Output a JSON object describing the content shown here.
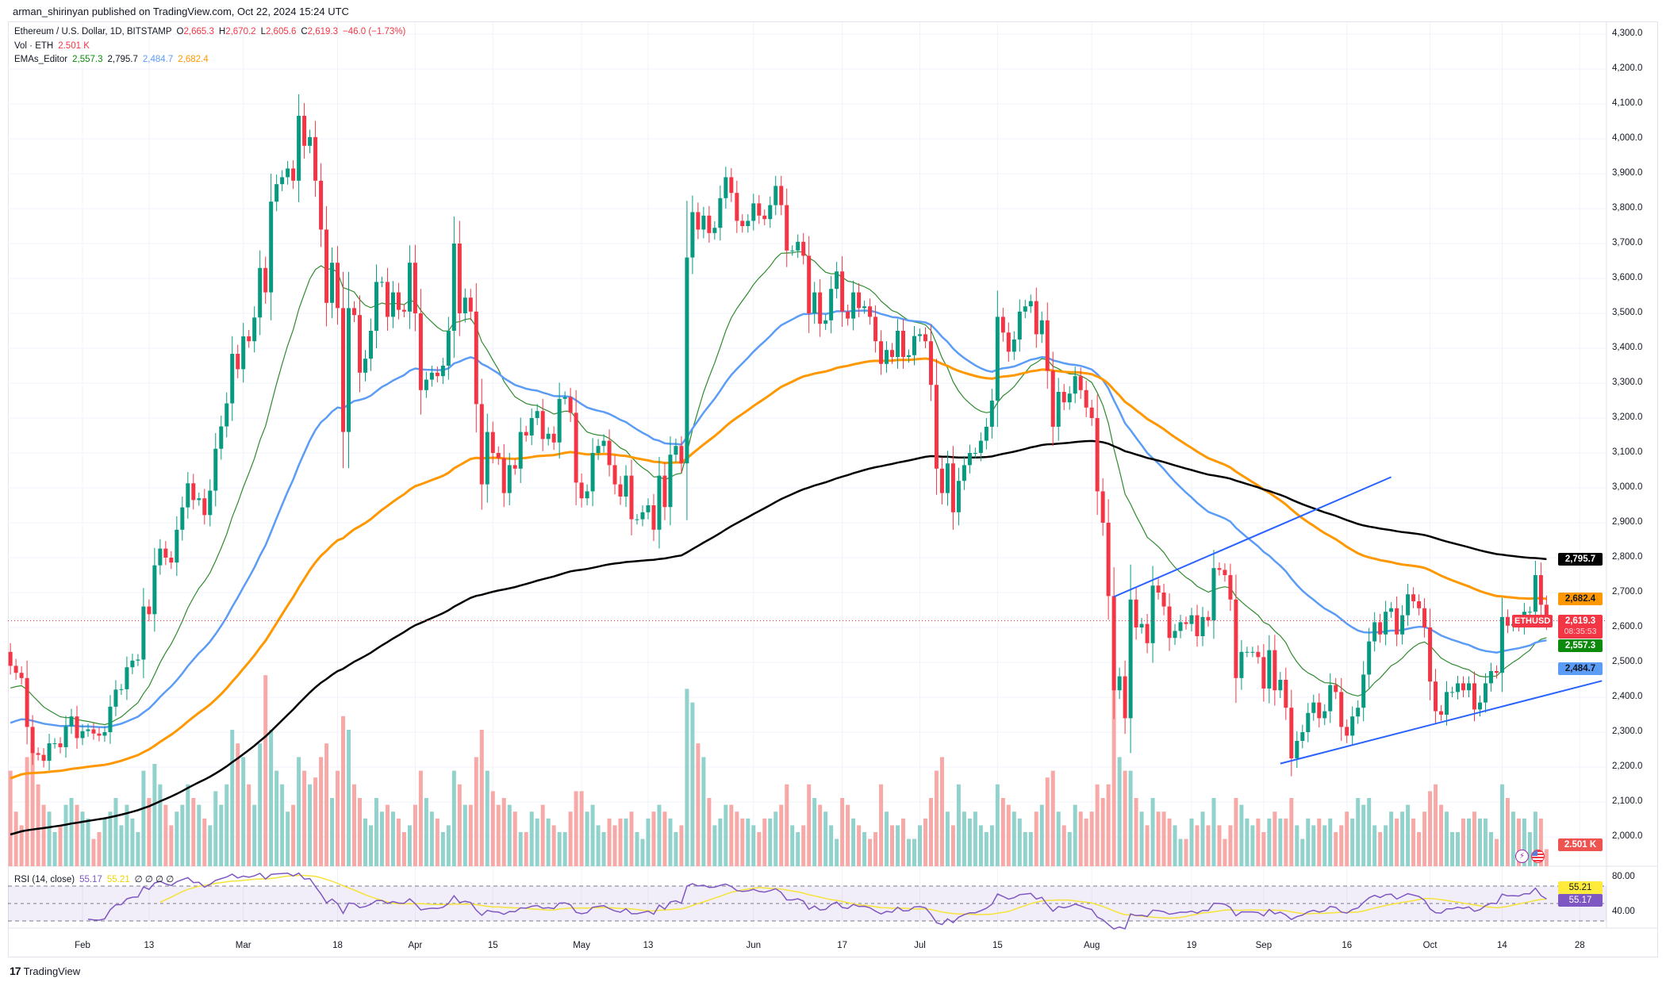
{
  "header": {
    "published": "arman_shirinyan published on TradingView.com, Oct 22, 2024 15:24 UTC"
  },
  "legend": {
    "symbol": "Ethereum / U.S. Dollar, 1D, BITSTAMP",
    "o_label": "O",
    "o": "2,665.3",
    "h_label": "H",
    "h": "2,670.2",
    "l_label": "L",
    "l": "2,605.6",
    "c_label": "C",
    "c": "2,619.3",
    "change": "−46.0 (−1.73%)",
    "vol_label": "Vol · ETH",
    "vol": "2.501 K",
    "ema_label": "EMAs_Editor",
    "ema20": "2,557.3",
    "ema200": "2,795.7",
    "ema50": "2,484.7",
    "ema100": "2,682.4",
    "rsi_label": "RSI (14, close)",
    "rsi": "55.17",
    "rsi_ma": "55.21",
    "rsi_extra": "∅ ∅ ∅ ∅"
  },
  "price_labels": {
    "ema200": "2,795.7",
    "ema100": "2,682.4",
    "ticker": "ETHUSD",
    "last": "2,619.3",
    "countdown": "08:35:53",
    "ema20": "2,557.3",
    "ema50": "2,484.7",
    "volume": "2.501 K",
    "rsi_ma": "55.21",
    "rsi": "55.17"
  },
  "colors": {
    "up": "#089981",
    "down": "#f23645",
    "ema20": "#2e8b2e",
    "ema50": "#5b9cf6",
    "ema100": "#ff9800",
    "ema200": "#000000",
    "trend": "#2962ff",
    "rsi": "#7e57c2",
    "rsi_ma": "#f5e23b"
  },
  "footer": {
    "brand": "TradingView"
  },
  "icons": [
    "lightning-icon",
    "us-flag-icon",
    "tradingview-logo-icon"
  ],
  "chart_data": {
    "type": "candlestick",
    "title": "Ethereum / U.S. Dollar, 1D, BITSTAMP",
    "start_date": "2024-01-19",
    "first_open": 2530,
    "ylim": [
      1950,
      4330
    ],
    "y_ticks": [
      "4,300.0",
      "4,200.0",
      "4,100.0",
      "4,000.0",
      "3,900.0",
      "3,800.0",
      "3,700.0",
      "3,600.0",
      "3,500.0",
      "3,400.0",
      "3,300.0",
      "3,200.0",
      "3,100.0",
      "3,000.0",
      "2,900.0",
      "2,800.0",
      "2,700.0",
      "2,600.0",
      "2,500.0",
      "2,400.0",
      "2,300.0",
      "2,200.0",
      "2,100.0",
      "2,000.0"
    ],
    "y_tick_values": [
      4300,
      4200,
      4100,
      4000,
      3900,
      3800,
      3700,
      3600,
      3500,
      3400,
      3300,
      3200,
      3100,
      3000,
      2900,
      2800,
      2700,
      2600,
      2500,
      2400,
      2300,
      2200,
      2100,
      2000
    ],
    "rsi_ticks": [
      "80.00",
      "40.00"
    ],
    "x_ticks": [
      {
        "label": "Feb",
        "date": "2024-02-01"
      },
      {
        "label": "13",
        "date": "2024-02-13"
      },
      {
        "label": "Mar",
        "date": "2024-03-01"
      },
      {
        "label": "18",
        "date": "2024-03-18"
      },
      {
        "label": "Apr",
        "date": "2024-04-01"
      },
      {
        "label": "15",
        "date": "2024-04-15"
      },
      {
        "label": "May",
        "date": "2024-05-01"
      },
      {
        "label": "13",
        "date": "2024-05-13"
      },
      {
        "label": "Jun",
        "date": "2024-06-01"
      },
      {
        "label": "17",
        "date": "2024-06-17"
      },
      {
        "label": "Jul",
        "date": "2024-07-01"
      },
      {
        "label": "15",
        "date": "2024-07-15"
      },
      {
        "label": "Aug",
        "date": "2024-08-01"
      },
      {
        "label": "19",
        "date": "2024-08-19"
      },
      {
        "label": "Sep",
        "date": "2024-09-01"
      },
      {
        "label": "16",
        "date": "2024-09-16"
      },
      {
        "label": "Oct",
        "date": "2024-10-01"
      },
      {
        "label": "14",
        "date": "2024-10-14"
      },
      {
        "label": "28",
        "date": "2024-10-28"
      }
    ],
    "closes": [
      2490,
      2470,
      2455,
      2315,
      2240,
      2235,
      2218,
      2268,
      2268,
      2257,
      2317,
      2345,
      2283,
      2303,
      2308,
      2296,
      2290,
      2300,
      2373,
      2422,
      2423,
      2486,
      2505,
      2508,
      2660,
      2638,
      2778,
      2826,
      2800,
      2786,
      2880,
      2944,
      3013,
      2965,
      2970,
      2922,
      2992,
      3112,
      3176,
      3242,
      3384,
      3340,
      3434,
      3420,
      3488,
      3630,
      3560,
      3820,
      3870,
      3890,
      3915,
      3880,
      4066,
      3980,
      4005,
      3880,
      3740,
      3530,
      3645,
      3515,
      3160,
      3515,
      3495,
      3330,
      3370,
      3450,
      3590,
      3590,
      3490,
      3560,
      3510,
      3505,
      3645,
      3500,
      3280,
      3310,
      3330,
      3320,
      3350,
      3450,
      3700,
      3500,
      3545,
      3505,
      3240,
      3010,
      3160,
      3100,
      3085,
      2985,
      3065,
      3055,
      3160,
      3150,
      3200,
      3220,
      3140,
      3155,
      3130,
      3255,
      3260,
      3215,
      3015,
      2970,
      2990,
      3100,
      3120,
      3135,
      3065,
      3010,
      2975,
      3035,
      2910,
      2910,
      2930,
      2950,
      2880,
      3035,
      2945,
      3095,
      3120,
      3070,
      3660,
      3790,
      3740,
      3780,
      3730,
      3745,
      3830,
      3890,
      3845,
      3765,
      3750,
      3765,
      3815,
      3780,
      3770,
      3810,
      3865,
      3810,
      3680,
      3680,
      3705,
      3665,
      3500,
      3560,
      3470,
      3480,
      3570,
      3620,
      3505,
      3485,
      3560,
      3515,
      3520,
      3490,
      3420,
      3355,
      3395,
      3375,
      3450,
      3375,
      3380,
      3435,
      3440,
      3420,
      3295,
      3055,
      2985,
      3070,
      2930,
      3020,
      3065,
      3100,
      3100,
      3135,
      3175,
      3250,
      3490,
      3445,
      3390,
      3425,
      3505,
      3520,
      3535,
      3440,
      3480,
      3335,
      3175,
      3275,
      3245,
      3270,
      3320,
      3280,
      3230,
      3200,
      2990,
      2900,
      2690,
      2420,
      2460,
      2340,
      2680,
      2600,
      2610,
      2555,
      2720,
      2700,
      2660,
      2570,
      2590,
      2615,
      2610,
      2635,
      2575,
      2630,
      2620,
      2770,
      2765,
      2750,
      2680,
      2455,
      2530,
      2530,
      2530,
      2515,
      2425,
      2535,
      2420,
      2450,
      2370,
      2225,
      2275,
      2300,
      2355,
      2385,
      2340,
      2360,
      2435,
      2415,
      2315,
      2290,
      2345,
      2370,
      2465,
      2560,
      2615,
      2580,
      2645,
      2655,
      2580,
      2635,
      2695,
      2675,
      2655,
      2600,
      2445,
      2360,
      2350,
      2415,
      2415,
      2440,
      2420,
      2440,
      2365,
      2385,
      2440,
      2475,
      2470,
      2630,
      2605,
      2610,
      2605,
      2645,
      2645,
      2750,
      2665,
      2619.3
    ],
    "volume_k": [
      14,
      8,
      6,
      16,
      18,
      12,
      9,
      8,
      5,
      6,
      9,
      10,
      9,
      8,
      7,
      4,
      5,
      7,
      8,
      10,
      6,
      9,
      7,
      5,
      14,
      10,
      15,
      12,
      9,
      6,
      8,
      9,
      12,
      10,
      9,
      7,
      6,
      11,
      9,
      12,
      20,
      18,
      16,
      12,
      9,
      18,
      28,
      20,
      14,
      12,
      8,
      9,
      16,
      14,
      12,
      13,
      16,
      18,
      10,
      14,
      22,
      20,
      12,
      10,
      7,
      6,
      10,
      8,
      9,
      8,
      7,
      5,
      6,
      9,
      14,
      10,
      8,
      7,
      5,
      6,
      14,
      12,
      9,
      9,
      16,
      20,
      14,
      11,
      9,
      10,
      9,
      8,
      5,
      5,
      8,
      7,
      9,
      7,
      6,
      5,
      5,
      8,
      11,
      11,
      8,
      9,
      6,
      5,
      7,
      6,
      7,
      7,
      8,
      5,
      4,
      7,
      8,
      9,
      8,
      7,
      5,
      6,
      26,
      24,
      18,
      16,
      10,
      6,
      7,
      9,
      9,
      8,
      7,
      7,
      6,
      5,
      7,
      7,
      8,
      9,
      12,
      6,
      5,
      6,
      12,
      10,
      9,
      8,
      6,
      4,
      10,
      9,
      7,
      6,
      5,
      4,
      5,
      12,
      8,
      6,
      6,
      7,
      4,
      4,
      6,
      7,
      10,
      14,
      16,
      8,
      6,
      12,
      8,
      7,
      8,
      6,
      5,
      6,
      12,
      10,
      9,
      8,
      7,
      5,
      5,
      8,
      9,
      13,
      14,
      8,
      6,
      5,
      9,
      8,
      7,
      8,
      12,
      10,
      12,
      30,
      16,
      14,
      14,
      10,
      8,
      6,
      10,
      8,
      8,
      7,
      6,
      4,
      4,
      7,
      6,
      8,
      6,
      10,
      6,
      4,
      6,
      10,
      9,
      7,
      6,
      7,
      5,
      7,
      8,
      7,
      7,
      10,
      6,
      4,
      7,
      6,
      7,
      6,
      7,
      5,
      6,
      8,
      7,
      10,
      9,
      10,
      6,
      5,
      6,
      8,
      7,
      8,
      9,
      7,
      5,
      8,
      11,
      12,
      9,
      8,
      5,
      5,
      7,
      7,
      8,
      7,
      7,
      5,
      4,
      12,
      10,
      8,
      7,
      7,
      5,
      8,
      7,
      2.501
    ],
    "emas": [
      {
        "name": "EMA 20",
        "period": 20,
        "start_value": 2420,
        "color_key": "ema20"
      },
      {
        "name": "EMA 50",
        "period": 50,
        "start_value": 2320,
        "color_key": "ema50"
      },
      {
        "name": "EMA 100",
        "period": 100,
        "start_value": 2161,
        "color_key": "ema100"
      },
      {
        "name": "EMA 200",
        "period": 200,
        "start_value": 2002,
        "color_key": "ema200"
      }
    ],
    "trendlines": [
      {
        "name": "upper",
        "from": {
          "date": "2024-08-05",
          "price": 2688
        },
        "to": {
          "date": "2024-09-24",
          "price": 3031
        }
      },
      {
        "name": "lower",
        "from": {
          "date": "2024-09-04",
          "price": 2210
        },
        "to": {
          "date": "2024-11-01",
          "price": 2447
        }
      }
    ],
    "rsi": {
      "period": 14,
      "ma_period": 14,
      "upper": 70,
      "lower": 30,
      "mid": 50,
      "last": 55.17,
      "ma_last": 55.21
    }
  }
}
